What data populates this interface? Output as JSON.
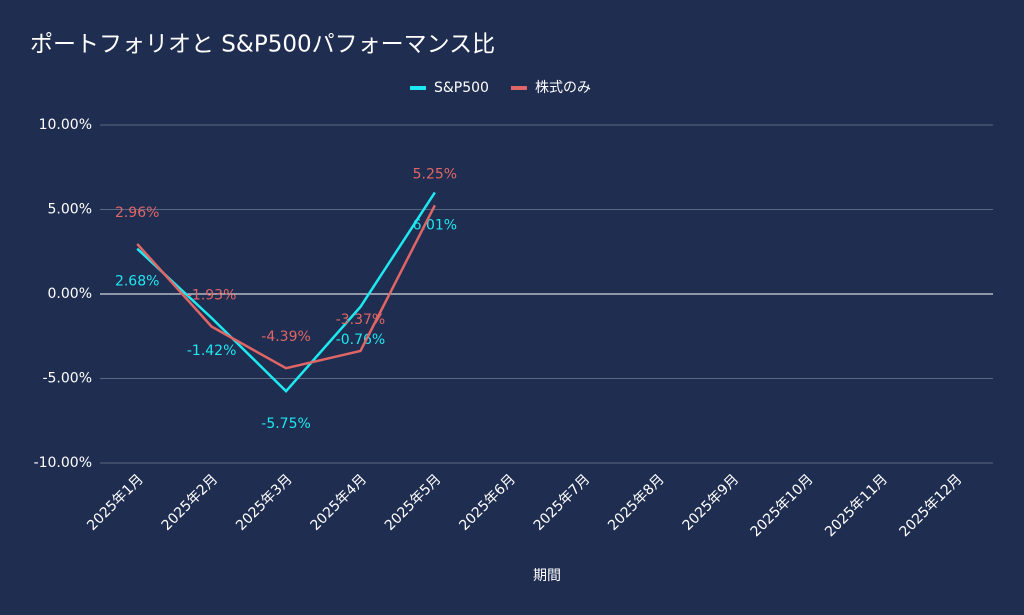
{
  "chart_data": {
    "type": "line",
    "title": "ポートフォリオと S&P500パフォーマンス比",
    "x_label": "期間",
    "categories": [
      "2025年1月",
      "2025年2月",
      "2025年3月",
      "2025年4月",
      "2025年5月",
      "2025年6月",
      "2025年7月",
      "2025年8月",
      "2025年9月",
      "2025年10月",
      "2025年11月",
      "2025年12月"
    ],
    "series": [
      {
        "name": "S&P500",
        "color": "#1ee8f0",
        "values": [
          2.68,
          -1.42,
          -5.75,
          -0.76,
          6.01,
          null,
          null,
          null,
          null,
          null,
          null,
          null
        ],
        "value_labels": [
          "2.68%",
          "-1.42%",
          "-5.75%",
          "-0.76%",
          "6.01%",
          null,
          null,
          null,
          null,
          null,
          null,
          null
        ]
      },
      {
        "name": "株式のみ",
        "color": "#e06666",
        "values": [
          2.96,
          -1.93,
          -4.39,
          -3.37,
          5.25,
          null,
          null,
          null,
          null,
          null,
          null,
          null
        ],
        "value_labels": [
          "2.96%",
          "-1.93%",
          "-4.39%",
          "-3.37%",
          "5.25%",
          null,
          null,
          null,
          null,
          null,
          null,
          null
        ]
      }
    ],
    "ylim": [
      -10,
      10
    ],
    "yticks": [
      {
        "value": -10,
        "label": "-10.00%"
      },
      {
        "value": -5,
        "label": "-5.00%"
      },
      {
        "value": 0,
        "label": "0.00%"
      },
      {
        "value": 5,
        "label": "5.00%"
      },
      {
        "value": 10,
        "label": "10.00%"
      }
    ],
    "grid": true,
    "legend": "top"
  }
}
